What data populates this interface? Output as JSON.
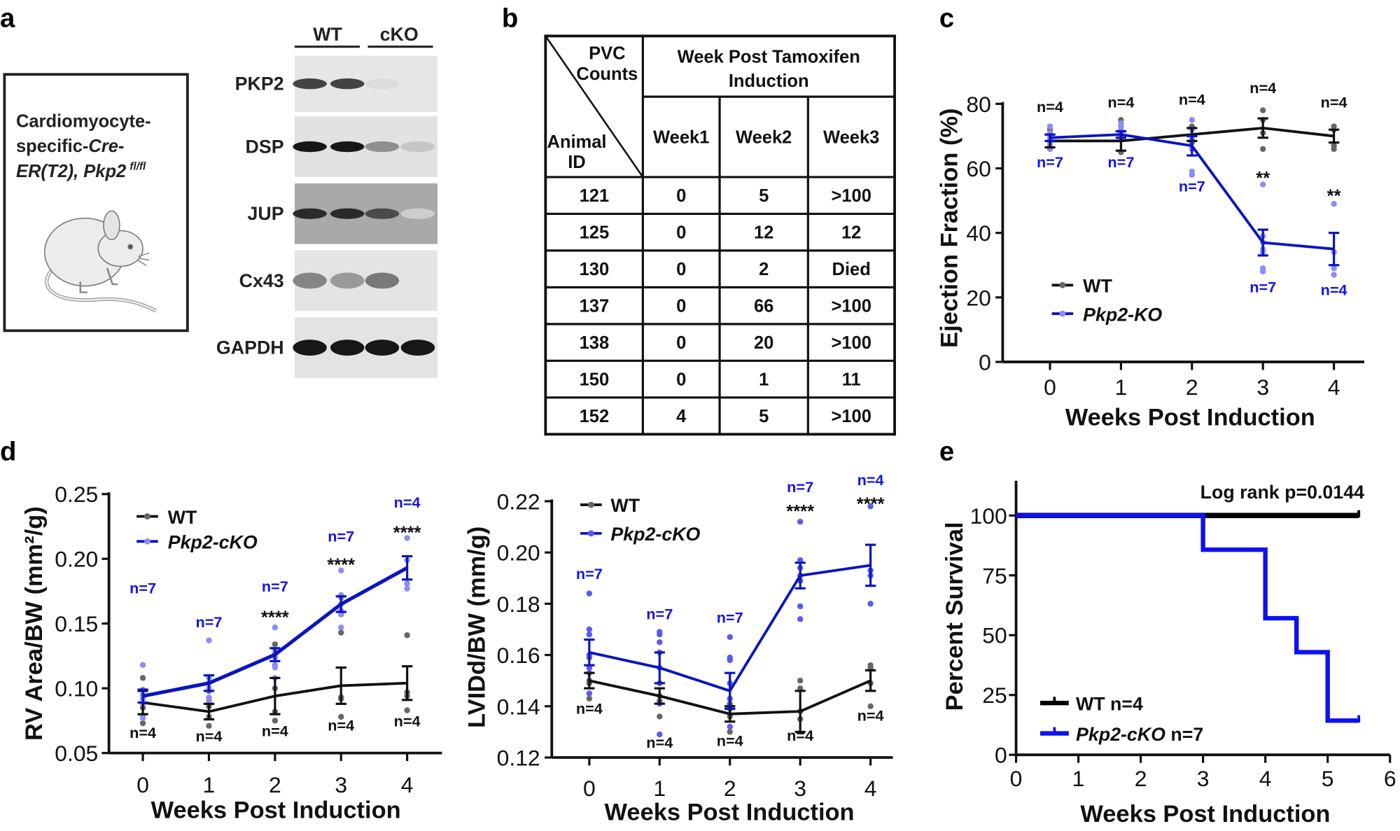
{
  "panel_labels": {
    "a": "a",
    "b": "b",
    "c": "c",
    "d": "d",
    "e": "e"
  },
  "panel_a": {
    "mouse_box": {
      "line1": "Cardiomyocyte-",
      "line2_plain": "specific-",
      "line2_italic": "Cre-",
      "line3_italic": "ER(T2), Pkp2",
      "line3_sup": "fl/fl"
    },
    "blot": {
      "groups": [
        "WT",
        "cKO"
      ],
      "rows": [
        "PKP2",
        "DSP",
        "JUP",
        "Cx43",
        "GAPDH"
      ]
    }
  },
  "panel_b": {
    "corner_top": [
      "PVC",
      "Counts"
    ],
    "corner_bottom": [
      "Animal",
      "ID"
    ],
    "group_header": [
      "Week Post Tamoxifen",
      "Induction"
    ],
    "columns": [
      "Week1",
      "Week2",
      "Week3"
    ],
    "rows": [
      [
        "121",
        "0",
        "5",
        ">100"
      ],
      [
        "125",
        "0",
        "12",
        "12"
      ],
      [
        "130",
        "0",
        "2",
        "Died"
      ],
      [
        "137",
        "0",
        "66",
        ">100"
      ],
      [
        "138",
        "0",
        "20",
        ">100"
      ],
      [
        "150",
        "0",
        "1",
        "11"
      ],
      [
        "152",
        "4",
        "5",
        ">100"
      ]
    ]
  },
  "chart_data": [
    {
      "id": "c",
      "type": "line",
      "xlabel": "Weeks Post Induction",
      "ylabel": "Ejection Fraction (%)",
      "x": [
        0,
        1,
        2,
        3,
        4
      ],
      "xtick_labels": [
        "0",
        "1",
        "2",
        "3",
        "4"
      ],
      "ylim": [
        0,
        80
      ],
      "yticks": [
        0,
        20,
        40,
        60,
        80
      ],
      "ytick_labels": [
        "0",
        "20",
        "40",
        "60",
        "80"
      ],
      "legend_placement": "bottom-left",
      "significance": [
        "",
        "",
        "",
        "**",
        "**"
      ],
      "series": [
        {
          "name": "WT",
          "color": "#111111",
          "point_color": "#666666",
          "mean": [
            68.5,
            68.5,
            70.5,
            72.5,
            70
          ],
          "sem": [
            2,
            3,
            2,
            3,
            2
          ],
          "points": [
            [
              72,
              70,
              66,
              67
            ],
            [
              75,
              70,
              69,
              65
            ],
            [
              73,
              72,
              68,
              69
            ],
            [
              78,
              75,
              71,
              66
            ],
            [
              73,
              72,
              67,
              66
            ]
          ],
          "n_labels": [
            "n=4",
            "n=4",
            "n=4",
            "n=4",
            "n=4"
          ]
        },
        {
          "name": "Pkp2-KO",
          "color": "#0a14c0",
          "point_color": "#8c8cf5",
          "mean": [
            69.5,
            70.5,
            67,
            37,
            35
          ],
          "sem": [
            1,
            1,
            3,
            4,
            5
          ],
          "points": [
            [
              73,
              71,
              70,
              69,
              68,
              67,
              66
            ],
            [
              74,
              73,
              72,
              71,
              70,
              69,
              71
            ],
            [
              75,
              72,
              70,
              69,
              66,
              59,
              58
            ],
            [
              55,
              39,
              37,
              35,
              34,
              29,
              28
            ],
            [
              49,
              34,
              29,
              27
            ]
          ],
          "n_labels": [
            "n=7",
            "n=7",
            "n=7",
            "n=7",
            "n=4"
          ]
        }
      ]
    },
    {
      "id": "d1",
      "type": "line",
      "xlabel": "Weeks Post Induction",
      "ylabel": "RV Area/BW (mm²/g)",
      "x": [
        0,
        1,
        2,
        3,
        4
      ],
      "xtick_labels": [
        "0",
        "1",
        "2",
        "3",
        "4"
      ],
      "ylim": [
        0.05,
        0.25
      ],
      "yticks": [
        0.05,
        0.1,
        0.15,
        0.2,
        0.25
      ],
      "ytick_labels": [
        "0.05",
        "0.10",
        "0.15",
        "0.20",
        "0.25"
      ],
      "legend_placement": "top-left",
      "significance": [
        "",
        "",
        "****",
        "****",
        "****"
      ],
      "series": [
        {
          "name": "WT",
          "color": "#111111",
          "point_color": "#666666",
          "mean": [
            0.089,
            0.082,
            0.094,
            0.102,
            0.104
          ],
          "sem": [
            0.009,
            0.006,
            0.014,
            0.014,
            0.013
          ],
          "points": [
            [
              0.108,
              0.095,
              0.085,
              0.073
            ],
            [
              0.098,
              0.086,
              0.078,
              0.071
            ],
            [
              0.134,
              0.1,
              0.082,
              0.075
            ],
            [
              0.143,
              0.093,
              0.092,
              0.078
            ],
            [
              0.141,
              0.097,
              0.094,
              0.083
            ]
          ],
          "n_labels": [
            "n=4",
            "n=4",
            "n=4",
            "n=4",
            "n=4"
          ]
        },
        {
          "name": "Pkp2-cKO",
          "color": "#0a14c0",
          "point_color": "#8c8cf5",
          "mean": [
            0.094,
            0.104,
            0.126,
            0.165,
            0.193
          ],
          "sem": [
            0.005,
            0.006,
            0.005,
            0.006,
            0.009
          ],
          "points": [
            [
              0.118,
              0.099,
              0.095,
              0.092,
              0.088,
              0.079,
              0.077
            ],
            [
              0.137,
              0.108,
              0.104,
              0.1,
              0.093,
              0.092,
              0.09
            ],
            [
              0.147,
              0.13,
              0.127,
              0.124,
              0.118,
              0.116,
              0.108
            ],
            [
              0.191,
              0.172,
              0.17,
              0.165,
              0.16,
              0.157,
              0.147
            ],
            [
              0.216,
              0.199,
              0.181,
              0.177
            ]
          ],
          "n_labels": [
            "n=7",
            "n=7",
            "n=7",
            "n=7",
            "n=4"
          ]
        }
      ]
    },
    {
      "id": "d2",
      "type": "line",
      "xlabel": "Weeks Post Induction",
      "ylabel": "LVIDd/BW (mm/g)",
      "x": [
        0,
        1,
        2,
        3,
        4
      ],
      "xtick_labels": [
        "0",
        "1",
        "2",
        "3",
        "4"
      ],
      "ylim": [
        0.12,
        0.22
      ],
      "yticks": [
        0.12,
        0.14,
        0.16,
        0.18,
        0.2,
        0.22
      ],
      "ytick_labels": [
        "0.12",
        "0.14",
        "0.16",
        "0.18",
        "0.20",
        "0.22"
      ],
      "legend_placement": "top-left",
      "significance": [
        "",
        "",
        "",
        "****",
        "****"
      ],
      "series": [
        {
          "name": "WT",
          "color": "#111111",
          "point_color": "#666666",
          "mean": [
            0.15,
            0.144,
            0.137,
            0.138,
            0.15
          ],
          "sem": [
            0.003,
            0.003,
            0.003,
            0.008,
            0.004
          ],
          "points": [
            [
              0.159,
              0.15,
              0.149,
              0.143
            ],
            [
              0.149,
              0.144,
              0.142,
              0.136
            ],
            [
              0.141,
              0.139,
              0.136,
              0.13
            ],
            [
              0.15,
              0.147,
              0.138,
              0.135
            ],
            [
              0.156,
              0.155,
              0.149,
              0.14
            ]
          ],
          "n_labels": [
            "n=4",
            "n=4",
            "n=4",
            "n=4",
            "n=4"
          ]
        },
        {
          "name": "Pkp2-cKO",
          "color": "#0a14c0",
          "point_color": "#5a5af0",
          "mean": [
            0.161,
            0.155,
            0.146,
            0.191,
            0.195
          ],
          "sem": [
            0.005,
            0.006,
            0.007,
            0.005,
            0.008
          ],
          "points": [
            [
              0.184,
              0.17,
              0.168,
              0.16,
              0.155,
              0.153,
              0.145
            ],
            [
              0.169,
              0.168,
              0.165,
              0.161,
              0.155,
              0.141,
              0.129
            ],
            [
              0.167,
              0.159,
              0.158,
              0.149,
              0.143,
              0.14,
              0.132
            ],
            [
              0.212,
              0.197,
              0.194,
              0.191,
              0.189,
              0.179,
              0.174
            ],
            [
              0.218,
              0.193,
              0.191,
              0.18
            ]
          ],
          "n_labels": [
            "n=7",
            "n=7",
            "n=7",
            "n=7",
            "n=4"
          ]
        }
      ]
    },
    {
      "id": "e",
      "type": "line",
      "subtype": "kaplan-meier",
      "xlabel": "Weeks Post Induction",
      "ylabel": "Percent Survival",
      "xlim": [
        0,
        6
      ],
      "xticks": [
        0,
        1,
        2,
        3,
        4,
        5,
        6
      ],
      "xtick_labels": [
        "0",
        "1",
        "2",
        "3",
        "4",
        "5",
        "6"
      ],
      "ylim": [
        0,
        100
      ],
      "yticks": [
        0,
        25,
        50,
        75,
        100
      ],
      "ytick_labels": [
        "0",
        "25",
        "50",
        "75",
        "100"
      ],
      "annotation": "Log rank p=0.0144",
      "legend_placement": "bottom-left",
      "series": [
        {
          "name": "WT",
          "n_label": "n=4",
          "color": "#000000",
          "steps": [
            [
              0,
              100
            ],
            [
              5.5,
              100
            ]
          ]
        },
        {
          "name": "Pkp2-cKO",
          "n_label": "n=7",
          "color": "#1010f0",
          "steps": [
            [
              0,
              100
            ],
            [
              3,
              85.7
            ],
            [
              4,
              57.1
            ],
            [
              4.5,
              42.9
            ],
            [
              5,
              14.3
            ],
            [
              5.5,
              14.3
            ]
          ]
        }
      ]
    }
  ]
}
